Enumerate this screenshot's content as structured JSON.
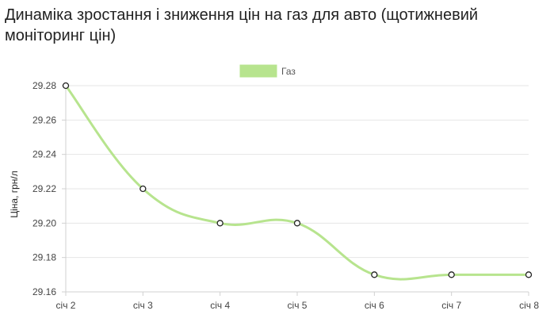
{
  "chart_data": {
    "type": "line",
    "title": "Динаміка зростання і зниження цін на газ для авто (щотижневий моніторинг цін)",
    "categories": [
      "січ 2",
      "січ 3",
      "січ 4",
      "січ 5",
      "січ 6",
      "січ 7",
      "січ 8"
    ],
    "series": [
      {
        "name": "Газ",
        "values": [
          29.28,
          29.22,
          29.2,
          29.2,
          29.17,
          29.17,
          29.17
        ],
        "color": "#b7e48e"
      }
    ],
    "xlabel": "",
    "ylabel": "Ціна, грн/л",
    "ylim": [
      29.16,
      29.28
    ],
    "yticks": [
      "29.16",
      "29.18",
      "29.20",
      "29.22",
      "29.24",
      "29.26",
      "29.28"
    ],
    "grid": true,
    "legend_position": "top"
  }
}
